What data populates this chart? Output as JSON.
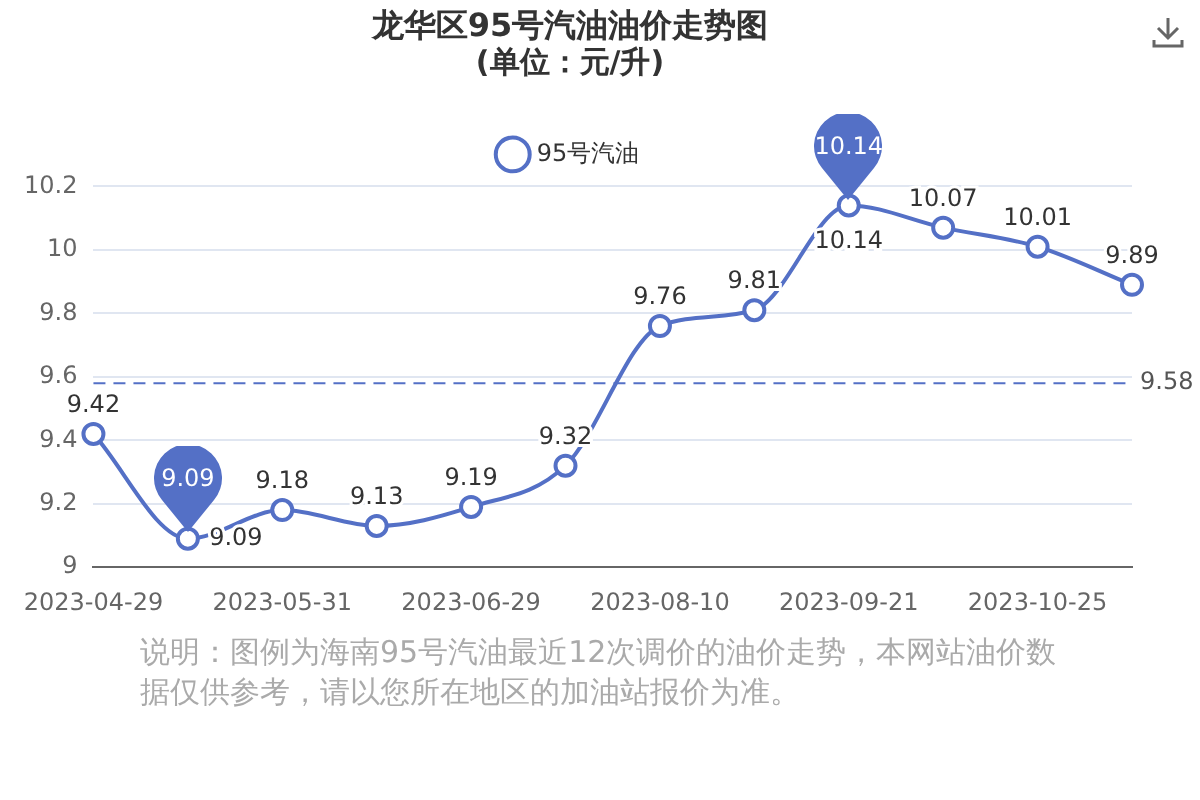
{
  "chart_data": {
    "type": "line",
    "title": "龙华区95号汽油油价走势图",
    "subtitle": "(单位：元/升)",
    "categories": [
      "2023-04-29",
      null,
      "2023-05-31",
      null,
      "2023-06-29",
      null,
      "2023-08-10",
      null,
      "2023-09-21",
      null,
      "2023-10-25",
      null
    ],
    "series": [
      {
        "name": "95号汽油",
        "color": "#5470c6",
        "values": [
          9.42,
          9.09,
          9.18,
          9.13,
          9.19,
          9.32,
          9.76,
          9.81,
          10.14,
          10.07,
          10.01,
          9.89
        ]
      }
    ],
    "ylim": [
      9,
      10.2
    ],
    "yticks": [
      9,
      9.2,
      9.4,
      9.6,
      9.8,
      10,
      10.2
    ],
    "grid": "y",
    "legend": "top",
    "marker": "circle",
    "line_style": "solid",
    "data_labels": true,
    "ref_lines": [
      {
        "axis": "y",
        "value": 9.58,
        "label": "9.58",
        "color": "#5470c6",
        "line_style": "dashed"
      }
    ],
    "annotations": [
      {
        "text": "10.14",
        "x": "2023-09-21",
        "y": 10.14
      },
      {
        "text": "9.09",
        "y": 9.09
      },
      "说明：图例为海南95号汽油最近12次调价的油价走势，本网站油价数据仅供参考，请以您所在地区的加油站报价为准。"
    ]
  }
}
